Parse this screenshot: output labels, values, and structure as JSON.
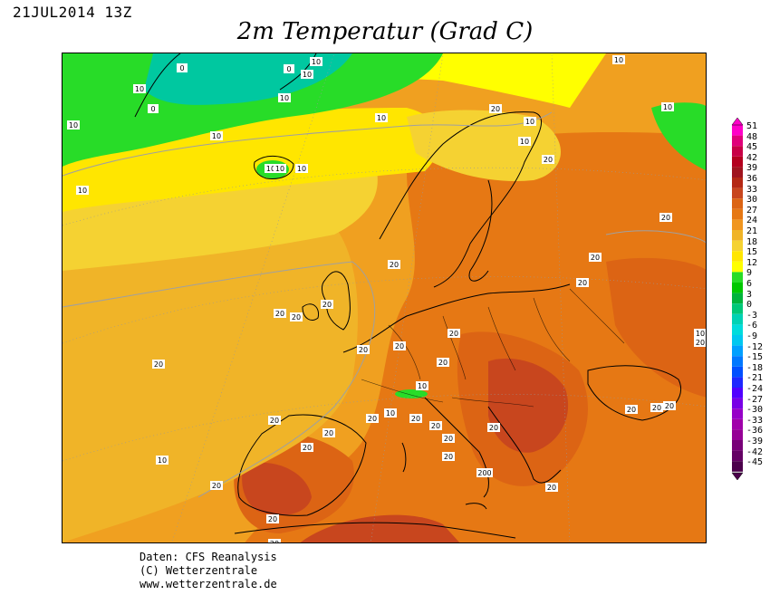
{
  "header": {
    "date": "21JUL2014 13Z",
    "title": "2m Temperatur (Grad C)"
  },
  "legend": {
    "labels": [
      "51",
      "48",
      "45",
      "42",
      "39",
      "36",
      "33",
      "30",
      "27",
      "24",
      "21",
      "18",
      "15",
      "12",
      "9",
      "6",
      "3",
      "0",
      "-3",
      "-6",
      "-9",
      "-12",
      "-15",
      "-18",
      "-21",
      "-24",
      "-27",
      "-30",
      "-33",
      "-36",
      "-39",
      "-42",
      "-45"
    ],
    "colors": [
      "#ff00c8",
      "#e0007a",
      "#c80046",
      "#b4001e",
      "#a0141e",
      "#b42814",
      "#c8461e",
      "#dc6414",
      "#e67814",
      "#f09620",
      "#f0b428",
      "#f5d232",
      "#ffe600",
      "#ffff00",
      "#28dc28",
      "#00c800",
      "#00b43c",
      "#00c878",
      "#00d2b4",
      "#00dcdc",
      "#00c8f0",
      "#00a0ff",
      "#0078ff",
      "#0050ff",
      "#1e28ff",
      "#5000ff",
      "#7800e6",
      "#9600c8",
      "#a000aa",
      "#960096",
      "#780078",
      "#640064",
      "#4b004b"
    ],
    "extremes": {
      "max_icon": "triangle-up-icon",
      "min_icon": "triangle-down-icon"
    }
  },
  "contour_labels": [
    "0",
    "0",
    "10",
    "10",
    "10",
    "10",
    "10",
    "0",
    "10",
    "10",
    "10",
    "10",
    "10",
    "10",
    "10",
    "10",
    "10",
    "10",
    "10",
    "20",
    "20",
    "20",
    "20",
    "20",
    "20",
    "20",
    "20",
    "20",
    "20",
    "20",
    "20",
    "20",
    "20",
    "20",
    "20",
    "20",
    "20",
    "20",
    "20",
    "20",
    "20",
    "20",
    "20",
    "20",
    "20",
    "20",
    "20",
    "200",
    "20",
    "20",
    "10",
    "10",
    "10",
    "20"
  ],
  "footer": {
    "line1": "Daten: CFS Reanalysis",
    "line2": "(C) Wetterzentrale",
    "line3": "www.wetterzentrale.de"
  }
}
